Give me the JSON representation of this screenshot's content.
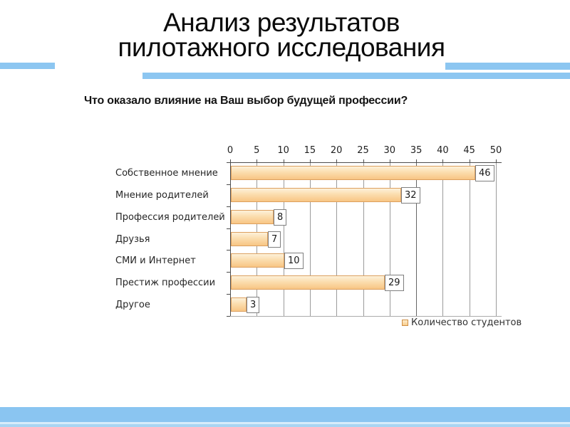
{
  "slide": {
    "title": {
      "line1": "Анализ результатов",
      "line2": "пилотажного исследования"
    },
    "question": "Что оказало влияние на Ваш выбор будущей профессии?"
  },
  "chart_data": {
    "type": "bar",
    "orientation": "horizontal",
    "title": "Что оказало влияние на Ваш выбор будущей профессии?",
    "categories": [
      "Собственное мнение",
      "Мнение родителей",
      "Профессия родителей",
      "Друзья",
      "СМИ и Интернет",
      "Престиж профессии",
      "Другое"
    ],
    "series": [
      {
        "name": "Количество студентов",
        "values": [
          46,
          32,
          8,
          7,
          10,
          29,
          3
        ]
      }
    ],
    "values": [
      46,
      32,
      8,
      7,
      10,
      29,
      3
    ],
    "data_labels": [
      46,
      32,
      8,
      7,
      10,
      29,
      3
    ],
    "xlim": [
      0,
      50
    ],
    "x_ticks": [
      0,
      5,
      10,
      15,
      20,
      25,
      30,
      35,
      40,
      45,
      50
    ],
    "grid": true,
    "legend_position": "bottom-right",
    "legend_label": "Количество студентов"
  },
  "colors": {
    "accent_blue": "#8CC6F1",
    "footer_blue": "#8AC5F1",
    "bar_border": "#DCA05F",
    "bar_fill_light": "#FDF1DA",
    "bar_fill_dark": "#F8C584",
    "gridline": "#9B9B9B",
    "axis": "#4D4D4D",
    "label_box_border": "#7F7F7F"
  }
}
